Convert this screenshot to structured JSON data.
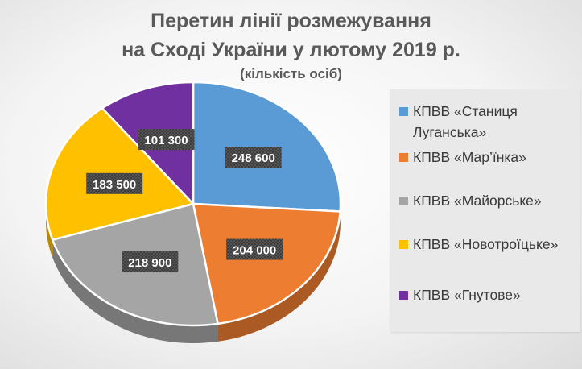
{
  "chart_data": {
    "type": "pie",
    "title_lines": [
      "Перетин лінії розмежування",
      "на Сході України у лютому 2019 р."
    ],
    "subtitle": "(кількість осіб)",
    "slices": [
      {
        "name": "КПВВ «Станиця Луганська»",
        "value": 248600,
        "label": "248 600",
        "color": "#5B9BD5"
      },
      {
        "name": "КПВВ «Мар’їнка»",
        "value": 204000,
        "label": "204 000",
        "color": "#ED7D31"
      },
      {
        "name": "КПВВ «Майорське»",
        "value": 218900,
        "label": "218 900",
        "color": "#A5A5A5"
      },
      {
        "name": "КПВВ «Новотроїцьке»",
        "value": 183500,
        "label": "183 500",
        "color": "#FFC000"
      },
      {
        "name": "КПВВ «Гнутове»",
        "value": 101300,
        "label": "101 300",
        "color": "#7030A0"
      }
    ],
    "legend_position": "right",
    "style": "3d-pie"
  }
}
